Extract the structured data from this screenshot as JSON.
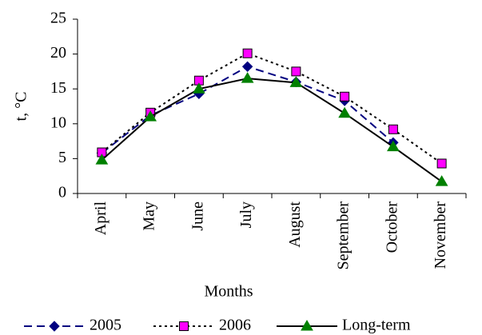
{
  "chart_data": {
    "type": "line",
    "y_label": "t, °C",
    "x_label": "Months",
    "categories": [
      "April",
      "May",
      "June",
      "July",
      "August",
      "September",
      "October",
      "November"
    ],
    "series": [
      {
        "name": "2005",
        "color": "#000080",
        "marker": "diamond",
        "dash": "dashed",
        "values": [
          5.8,
          11.2,
          14.3,
          18.2,
          16.0,
          13.3,
          7.3,
          null
        ]
      },
      {
        "name": "2006",
        "color": "#ff00ff",
        "marker": "square",
        "dash": "dotted",
        "values": [
          5.9,
          11.6,
          16.2,
          20.1,
          17.5,
          13.9,
          9.2,
          4.3
        ]
      },
      {
        "name": "Long-term",
        "color": "#008000",
        "marker": "triangle",
        "dash": "solid",
        "values": [
          4.8,
          11.0,
          15.0,
          16.5,
          15.9,
          11.5,
          6.7,
          1.7
        ]
      }
    ],
    "ylim": [
      0,
      25
    ],
    "yticks": [
      0,
      5,
      10,
      15,
      20,
      25
    ],
    "grid": false,
    "legend": "bottom"
  }
}
